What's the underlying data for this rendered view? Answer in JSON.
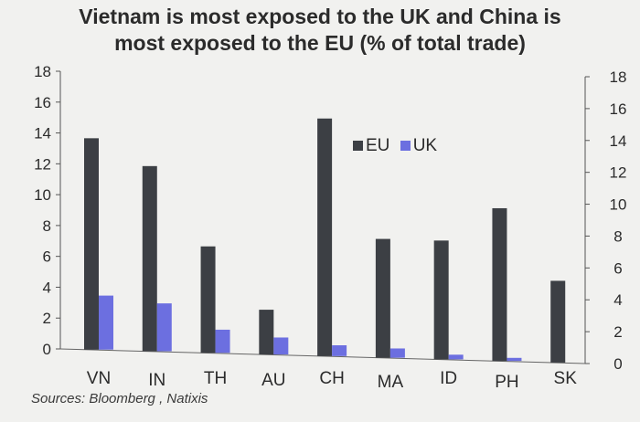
{
  "chart_data": {
    "type": "bar",
    "title": "Vietnam is most exposed to the UK and China is most exposed to the EU (% of total trade)",
    "categories": [
      "VN",
      "IN",
      "TH",
      "AU",
      "CH",
      "MA",
      "ID",
      "PH",
      "SK"
    ],
    "series": [
      {
        "name": "EU",
        "color": "#3c3f44",
        "values": [
          13.7,
          12.0,
          6.9,
          2.9,
          15.4,
          7.7,
          7.7,
          9.9,
          5.3
        ]
      },
      {
        "name": "UK",
        "color": "#6c6fe0",
        "values": [
          3.5,
          3.1,
          1.5,
          1.1,
          0.7,
          0.6,
          0.3,
          0.2,
          0.0
        ]
      }
    ],
    "left_axis": {
      "ylim": [
        0,
        18
      ],
      "ticks": [
        "0",
        "2",
        "4",
        "6",
        "8",
        "10",
        "12",
        "14",
        "16",
        "18"
      ]
    },
    "right_axis": {
      "ylim": [
        0,
        18
      ],
      "ticks": [
        "0",
        "2",
        "4",
        "6",
        "8",
        "10",
        "12",
        "14",
        "16",
        "18"
      ]
    },
    "legend_position": "upper-right",
    "grid": false,
    "source": "Sources: Bloomberg , Natixis"
  }
}
